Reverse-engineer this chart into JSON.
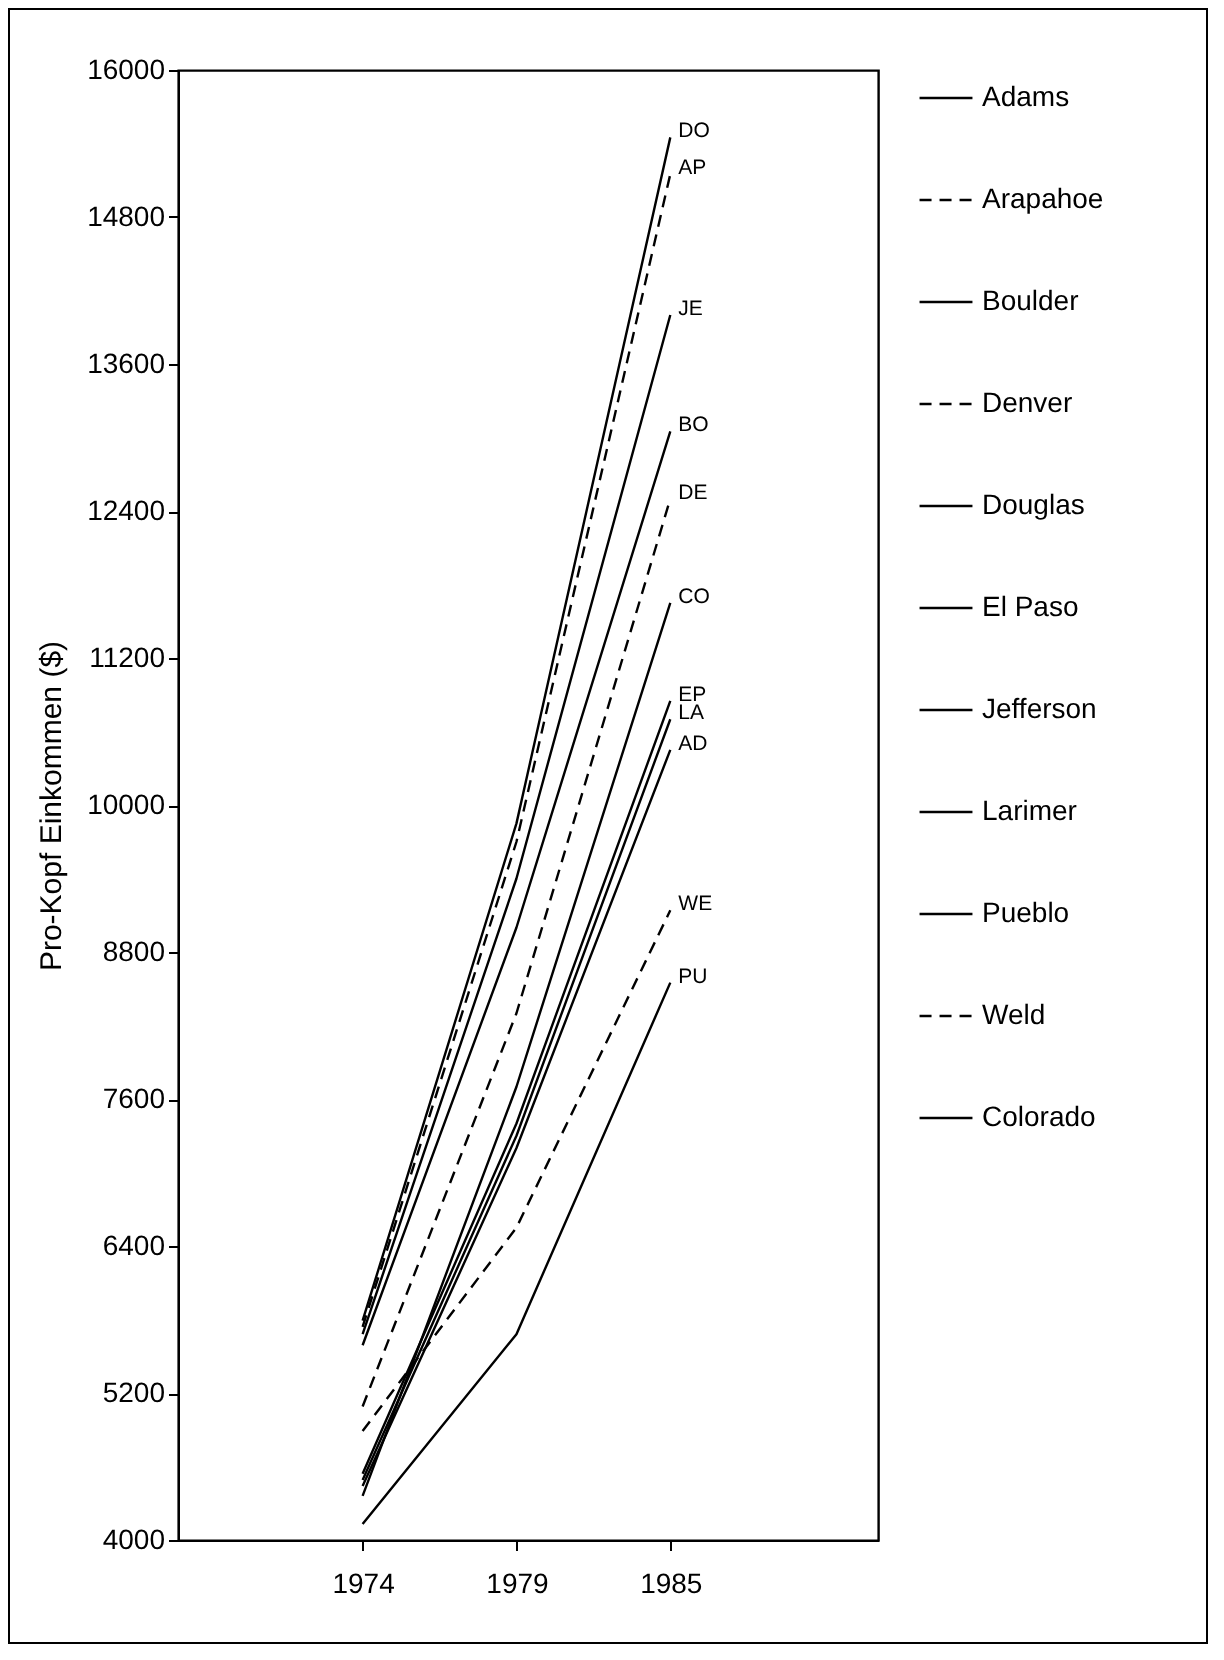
{
  "chart_data": {
    "type": "line",
    "ylabel": "Pro-Kopf Einkommen ($)",
    "categories": [
      "1974",
      "1979",
      "1985"
    ],
    "ylim": [
      4000,
      16000
    ],
    "yticks": [
      4000,
      5200,
      6400,
      7600,
      8800,
      10000,
      11200,
      12400,
      13600,
      14800,
      16000
    ],
    "grid": false,
    "legend": "right",
    "marker": "none",
    "series": [
      {
        "name": "Adams",
        "color": "#000000",
        "line_style": "solid",
        "values": [
          4440,
          7200,
          10450
        ]
      },
      {
        "name": "Arapahoe",
        "color": "#000000",
        "line_style": "dashed",
        "values": [
          5740,
          9700,
          15150
        ]
      },
      {
        "name": "Boulder",
        "color": "#000000",
        "line_style": "solid",
        "values": [
          5590,
          9000,
          13050
        ]
      },
      {
        "name": "Denver",
        "color": "#000000",
        "line_style": "dashed",
        "values": [
          5090,
          8300,
          12500
        ]
      },
      {
        "name": "Douglas",
        "color": "#000000",
        "line_style": "solid",
        "values": [
          5790,
          9850,
          15450
        ]
      },
      {
        "name": "El Paso",
        "color": "#000000",
        "line_style": "solid",
        "values": [
          4540,
          7400,
          10850
        ]
      },
      {
        "name": "Jefferson",
        "color": "#000000",
        "line_style": "solid",
        "values": [
          5680,
          9400,
          14000
        ]
      },
      {
        "name": "Larimer",
        "color": "#000000",
        "line_style": "solid",
        "values": [
          4490,
          7300,
          10700
        ]
      },
      {
        "name": "Pueblo",
        "color": "#000000",
        "line_style": "solid",
        "values": [
          4130,
          5680,
          8550
        ]
      },
      {
        "name": "Weld",
        "color": "#000000",
        "line_style": "dashed",
        "values": [
          4890,
          6550,
          9140
        ]
      },
      {
        "name": "Colorado",
        "color": "#000000",
        "line_style": "solid",
        "values": [
          4360,
          7700,
          11650
        ]
      }
    ],
    "annotations": [
      {
        "text": "DO",
        "x": "1985",
        "y": 15450
      },
      {
        "text": "AP",
        "x": "1985",
        "y": 15150
      },
      {
        "text": "JE",
        "x": "1985",
        "y": 14000
      },
      {
        "text": "BO",
        "x": "1985",
        "y": 13050
      },
      {
        "text": "DE",
        "x": "1985",
        "y": 12500
      },
      {
        "text": "CO",
        "x": "1985",
        "y": 11650
      },
      {
        "text": "EP",
        "x": "1985",
        "y": 10850
      },
      {
        "text": "LA",
        "x": "1985",
        "y": 10700
      },
      {
        "text": "AD",
        "x": "1985",
        "y": 10450
      },
      {
        "text": "WE",
        "x": "1985",
        "y": 9140
      },
      {
        "text": "PU",
        "x": "1985",
        "y": 8550
      }
    ]
  }
}
